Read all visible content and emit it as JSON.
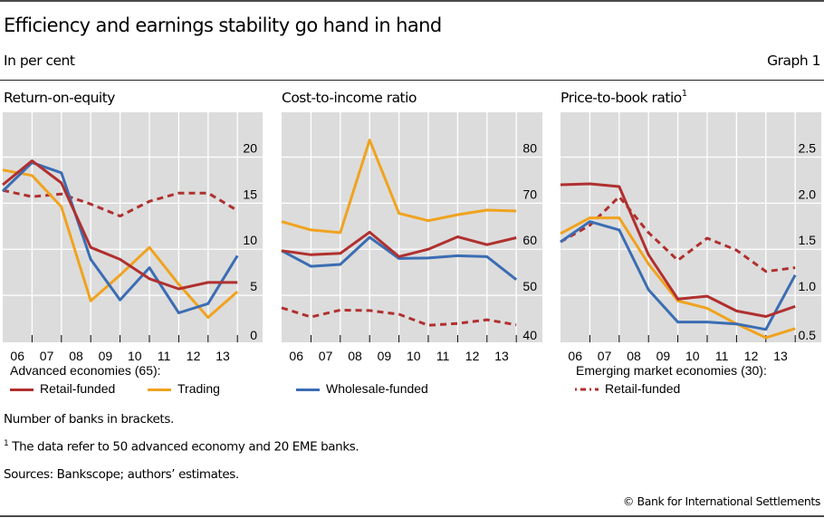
{
  "header": {
    "title": "Efficiency and earnings stability go hand in hand",
    "subtitle": "In per cent",
    "graph_number": "Graph 1"
  },
  "colors": {
    "retail_funded": "#b0302f",
    "trading": "#f0a31e",
    "wholesale_funded": "#3b6db3",
    "plot_background": "#dcdcdc",
    "gridline": "#ffffff"
  },
  "chart_data": [
    {
      "type": "line",
      "title": "Return-on-equity",
      "title_footnote": "",
      "x": [
        "06",
        "07",
        "08",
        "09",
        "10",
        "11",
        "12",
        "13"
      ],
      "x_points": 9,
      "ylim": [
        0,
        25
      ],
      "yticks": [
        0,
        5,
        10,
        15,
        20
      ],
      "ytick_labels": [
        "0",
        "5",
        "10",
        "15",
        "20"
      ],
      "grid": true,
      "series": [
        {
          "name": "Advanced economies: Retail-funded",
          "key": "retail_funded",
          "style": "solid",
          "values": [
            17.0,
            19.6,
            17.2,
            10.2,
            8.9,
            6.8,
            5.7,
            6.4,
            6.4
          ]
        },
        {
          "name": "Advanced economies: Trading",
          "key": "trading",
          "style": "solid",
          "values": [
            18.6,
            18.0,
            14.6,
            4.4,
            7.2,
            10.2,
            6.2,
            2.6,
            5.4
          ]
        },
        {
          "name": "Advanced economies: Wholesale-funded",
          "key": "wholesale_funded",
          "style": "solid",
          "values": [
            16.3,
            19.4,
            18.3,
            8.9,
            4.5,
            8.0,
            3.1,
            4.1,
            9.3
          ]
        },
        {
          "name": "Emerging market economies: Retail-funded",
          "key": "retail_funded",
          "style": "dashed",
          "values": [
            16.4,
            15.7,
            16.0,
            14.9,
            13.6,
            15.2,
            16.1,
            16.1,
            14.2
          ]
        }
      ]
    },
    {
      "type": "line",
      "title": "Cost-to-income ratio",
      "title_footnote": "",
      "x": [
        "06",
        "07",
        "08",
        "09",
        "10",
        "11",
        "12",
        "13"
      ],
      "x_points": 9,
      "ylim": [
        40,
        90
      ],
      "yticks": [
        40,
        50,
        60,
        70,
        80
      ],
      "ytick_labels": [
        "40",
        "50",
        "60",
        "70",
        "80"
      ],
      "grid": true,
      "series": [
        {
          "name": "Advanced economies: Retail-funded",
          "key": "retail_funded",
          "style": "solid",
          "values": [
            59.7,
            58.8,
            59.1,
            63.7,
            58.4,
            60.0,
            62.7,
            61.0,
            62.5
          ]
        },
        {
          "name": "Advanced economies: Trading",
          "key": "trading",
          "style": "solid",
          "values": [
            66.0,
            64.2,
            63.6,
            83.7,
            67.8,
            66.2,
            67.5,
            68.5,
            68.3
          ]
        },
        {
          "name": "Advanced economies: Wholesale-funded",
          "key": "wholesale_funded",
          "style": "solid",
          "values": [
            59.7,
            56.3,
            56.7,
            62.6,
            58.0,
            58.1,
            58.6,
            58.4,
            53.4
          ]
        },
        {
          "name": "Emerging market economies: Retail-funded",
          "key": "retail_funded",
          "style": "dashed",
          "values": [
            47.3,
            45.3,
            46.8,
            46.7,
            45.9,
            43.5,
            43.9,
            44.7,
            43.6
          ]
        }
      ]
    },
    {
      "type": "line",
      "title": "Price-to-book ratio",
      "title_footnote": "1",
      "x": [
        "06",
        "07",
        "08",
        "09",
        "10",
        "11",
        "12",
        "13"
      ],
      "x_points": 9,
      "ylim": [
        0.5,
        3.0
      ],
      "yticks": [
        0.5,
        1.0,
        1.5,
        2.0,
        2.5
      ],
      "ytick_labels": [
        "0.5",
        "1.0",
        "1.5",
        "2.0",
        "2.5"
      ],
      "grid": true,
      "series": [
        {
          "name": "Advanced economies: Retail-funded",
          "key": "retail_funded",
          "style": "solid",
          "values": [
            2.2,
            2.21,
            2.18,
            1.44,
            0.96,
            0.99,
            0.83,
            0.77,
            0.88
          ]
        },
        {
          "name": "Advanced economies: Trading",
          "key": "trading",
          "style": "solid",
          "values": [
            1.67,
            1.84,
            1.84,
            1.34,
            0.94,
            0.86,
            0.69,
            0.54,
            0.64
          ]
        },
        {
          "name": "Advanced economies: Wholesale-funded",
          "key": "wholesale_funded",
          "style": "solid",
          "values": [
            1.58,
            1.8,
            1.71,
            1.06,
            0.71,
            0.71,
            0.69,
            0.63,
            1.22
          ]
        },
        {
          "name": "Emerging market economies: Retail-funded",
          "key": "retail_funded",
          "style": "dashed",
          "values": [
            1.58,
            1.76,
            2.07,
            1.68,
            1.38,
            1.62,
            1.49,
            1.26,
            1.3
          ]
        }
      ]
    }
  ],
  "legend": {
    "group_advanced": "Advanced economies (65):",
    "group_emerging": "Emerging market economies (30):",
    "retail_funded": "Retail-funded",
    "trading": "Trading",
    "wholesale_funded": "Wholesale-funded",
    "emerging_retail_funded": "Retail-funded"
  },
  "notes": {
    "brackets": "Number of banks in brackets.",
    "footnote_marker": "1",
    "footnote_1": " The data refer to 50 advanced economy and 20 EME banks.",
    "sources": "Sources: Bankscope; authors’ estimates.",
    "copyright": "© Bank for International Settlements"
  }
}
